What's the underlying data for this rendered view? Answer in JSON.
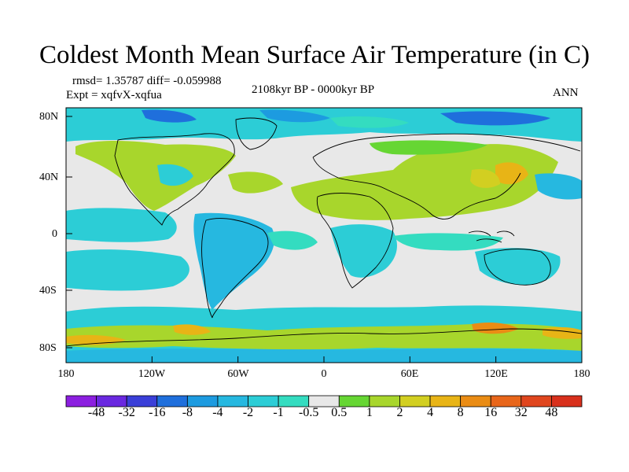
{
  "title": "Coldest Month Mean Surface Air Temperature (in C)",
  "stats_text": "rmsd= 1.35787 diff= -0.059988",
  "experiment_text": "Expt = xqfvX-xqfua",
  "period_text": "2108kyr BP - 0000kyr BP",
  "season_text": "ANN",
  "lat_ticks": [
    "80N",
    "40N",
    "0",
    "40S",
    "80S"
  ],
  "lon_ticks": [
    "180",
    "120W",
    "60W",
    "0",
    "60E",
    "120E",
    "180"
  ],
  "colorbar": {
    "labels": [
      "-48",
      "-32",
      "-16",
      "-8",
      "-4",
      "-2",
      "-1",
      "-0.5",
      "0.5",
      "1",
      "2",
      "4",
      "8",
      "16",
      "32",
      "48"
    ],
    "colors": [
      "#8c1fe0",
      "#6a28e0",
      "#3a3fd8",
      "#1f6fdc",
      "#1d9be0",
      "#26b8e0",
      "#2ccdd6",
      "#34dcc0",
      "#e8e8e8",
      "#66d633",
      "#a8d62c",
      "#d2cf21",
      "#e8b416",
      "#ea8c14",
      "#e8661a",
      "#e0461e",
      "#d8301c"
    ]
  },
  "map": {
    "ocean_color": "#e8e8e8",
    "coast_color": "#000000"
  }
}
